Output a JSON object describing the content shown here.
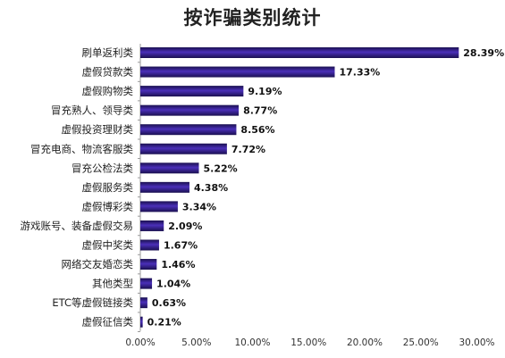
{
  "chart_data": {
    "type": "bar",
    "orientation": "horizontal",
    "title": "按诈骗类别统计",
    "xlabel": "",
    "ylabel": "",
    "categories": [
      "刷单返利类",
      "虚假贷款类",
      "虚假购物类",
      "冒充熟人、领导类",
      "虚假投资理财类",
      "冒充电商、物流客服类",
      "冒充公检法类",
      "虚假服务类",
      "虚假博彩类",
      "游戏账号、装备虚假交易",
      "虚假中奖类",
      "网络交友婚恋类",
      "其他类型",
      "ETC等虚假链接类",
      "虚假征信类"
    ],
    "values": [
      28.39,
      17.33,
      9.19,
      8.77,
      8.56,
      7.72,
      5.22,
      4.38,
      3.34,
      2.09,
      1.67,
      1.46,
      1.04,
      0.63,
      0.21
    ],
    "value_labels": [
      "28.39%",
      "17.33%",
      "9.19%",
      "8.77%",
      "8.56%",
      "7.72%",
      "5.22%",
      "4.38%",
      "3.34%",
      "2.09%",
      "1.67%",
      "1.46%",
      "1.04%",
      "0.63%",
      "0.21%"
    ],
    "xlim": [
      0,
      30
    ],
    "x_ticks": [
      "0.00%",
      "5.00%",
      "10.00%",
      "15.00%",
      "20.00%",
      "25.00%",
      "30.00%"
    ],
    "grid": false,
    "legend": "none",
    "colors": {
      "bar_dark": "#1a1050",
      "bar_mid": "#4a2fb8",
      "bar_light": "#8a78e0"
    }
  }
}
